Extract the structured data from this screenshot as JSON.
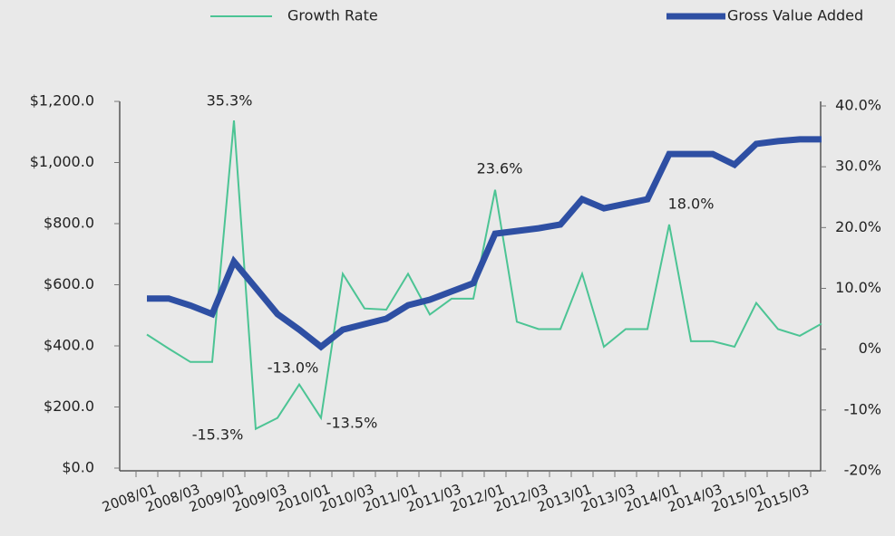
{
  "chart_data": {
    "type": "line",
    "categories": [
      "2008/01",
      null,
      "2008/03",
      null,
      "2009/01",
      null,
      "2009/03",
      null,
      "2010/01",
      null,
      "2010/03",
      null,
      "2011/01",
      null,
      "2011/03",
      null,
      "2012/01",
      null,
      "2012/03",
      null,
      "2013/01",
      null,
      "2013/03",
      null,
      "2014/01",
      null,
      "2014/03",
      null,
      "2015/01",
      null,
      "2015/03",
      null
    ],
    "series": [
      {
        "name": "Growth Rate",
        "color": "#4cc494",
        "axis": "y2",
        "values": [
          2.4,
          0.1,
          -2.1,
          -2.1,
          37.6,
          -13.1,
          -11.3,
          -5.8,
          -11.3,
          12.4,
          6.7,
          6.5,
          12.4,
          5.7,
          8.3,
          8.3,
          26.2,
          4.5,
          3.3,
          3.3,
          12.4,
          0.4,
          3.3,
          3.3,
          20.5,
          1.3,
          1.3,
          0.4,
          7.6,
          3.3,
          2.2,
          4.2
        ]
      },
      {
        "name": "Gross Value Added",
        "color": "#2e4fa3",
        "values": [
          555,
          555,
          532,
          504,
          676,
          590,
          504,
          453,
          397,
          453,
          471,
          489,
          533,
          551,
          578,
          605,
          767,
          776,
          785,
          797,
          880,
          850,
          865,
          880,
          1028,
          1028,
          1028,
          993,
          1061,
          1070,
          1076,
          1076
        ]
      }
    ],
    "ylim": [
      0,
      1200
    ],
    "yticks": [
      {
        "value": 0,
        "label": "$0.0"
      },
      {
        "value": 200,
        "label": "$200.0"
      },
      {
        "value": 400,
        "label": "$400.0"
      },
      {
        "value": 600,
        "label": "$600.0"
      },
      {
        "value": 800,
        "label": "$800.0"
      },
      {
        "value": 1000,
        "label": "$1,000.0"
      },
      {
        "value": 1200,
        "label": "$1,200.0"
      }
    ],
    "y2lim": [
      -20,
      40
    ],
    "y2ticks": [
      {
        "value": -20,
        "label": "-20%"
      },
      {
        "value": -10,
        "label": "-10%"
      },
      0,
      {
        "value": 0,
        "label": "0%"
      },
      {
        "value": 10,
        "label": "10.0%"
      },
      {
        "value": 20,
        "label": "20.0%"
      },
      {
        "value": 30,
        "label": "30.0%"
      },
      {
        "value": 40,
        "label": "40.0%"
      }
    ],
    "annotations": [
      "35.3%",
      "-15.3%",
      "-13.0%",
      "-13.5%",
      "23.6%",
      "18.0%"
    ],
    "legend": "top"
  }
}
